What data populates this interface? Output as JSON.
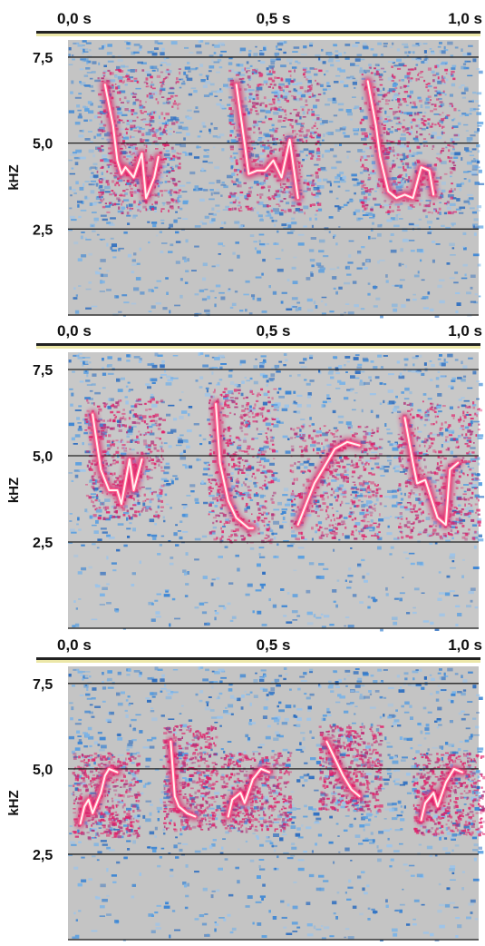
{
  "chart_data": [
    {
      "type": "heatmap",
      "title": "",
      "xlabel": "",
      "ylabel": "kHZ",
      "x_tick_labels": [
        "0,0 s",
        "0,5 s",
        "1,0 s"
      ],
      "x_ticks": [
        0.0,
        0.5,
        1.0
      ],
      "y_tick_labels": [
        "7,5",
        "5,0",
        "2,5"
      ],
      "y_ticks": [
        7.5,
        5.0,
        2.5
      ],
      "xlim": [
        0.0,
        1.0
      ],
      "ylim": [
        0.0,
        8.0
      ],
      "grid": "horizontal lines at 2,5 / 5,0 / 7,5 kHz",
      "notes_count": 3,
      "notes": [
        {
          "t": [
            0.09,
            0.11,
            0.12,
            0.13,
            0.14,
            0.16,
            0.18,
            0.19,
            0.21,
            0.22
          ],
          "f": [
            6.7,
            5.5,
            4.5,
            4.1,
            4.3,
            4.0,
            4.7,
            3.4,
            4.0,
            4.6
          ]
        },
        {
          "t": [
            0.41,
            0.43,
            0.44,
            0.46,
            0.48,
            0.5,
            0.52,
            0.54,
            0.56
          ],
          "f": [
            6.7,
            5.0,
            4.1,
            4.2,
            4.2,
            4.5,
            4.0,
            5.1,
            3.4
          ]
        },
        {
          "t": [
            0.73,
            0.75,
            0.76,
            0.78,
            0.8,
            0.82,
            0.84,
            0.86,
            0.88,
            0.89
          ],
          "f": [
            6.8,
            5.5,
            4.6,
            3.6,
            3.4,
            3.5,
            3.4,
            4.3,
            4.2,
            3.5
          ]
        }
      ],
      "colors": {
        "background": "#c4c4c4",
        "noise": "#4a8fd6",
        "energy": "#e0206a",
        "peak": "#fff0f0"
      }
    },
    {
      "type": "heatmap",
      "title": "",
      "xlabel": "",
      "ylabel": "kHZ",
      "x_tick_labels": [
        "0,0 s",
        "0,5 s",
        "1,0 s"
      ],
      "x_ticks": [
        0.0,
        0.5,
        1.0
      ],
      "y_tick_labels": [
        "7,5",
        "5,0",
        "2,5"
      ],
      "y_ticks": [
        7.5,
        5.0,
        2.5
      ],
      "xlim": [
        0.0,
        1.0
      ],
      "ylim": [
        0.0,
        8.0
      ],
      "grid": "horizontal lines at 2,5 / 5,0 / 7,5 kHz",
      "notes_count": 4,
      "notes": [
        {
          "t": [
            0.06,
            0.08,
            0.1,
            0.12,
            0.13,
            0.15,
            0.16,
            0.18
          ],
          "f": [
            6.2,
            4.6,
            4.0,
            4.0,
            3.6,
            4.9,
            4.0,
            4.9
          ]
        },
        {
          "t": [
            0.36,
            0.37,
            0.39,
            0.41,
            0.43,
            0.44,
            0.45
          ],
          "f": [
            6.5,
            4.8,
            3.7,
            3.2,
            3.0,
            2.9,
            2.9
          ]
        },
        {
          "t": [
            0.56,
            0.58,
            0.6,
            0.62,
            0.65,
            0.68,
            0.71
          ],
          "f": [
            3.0,
            3.6,
            4.2,
            4.6,
            5.2,
            5.4,
            5.3
          ]
        },
        {
          "t": [
            0.82,
            0.84,
            0.85,
            0.87,
            0.9,
            0.92,
            0.93,
            0.95
          ],
          "f": [
            6.1,
            4.8,
            4.2,
            4.3,
            3.2,
            3.0,
            4.6,
            4.8
          ]
        }
      ],
      "colors": {
        "background": "#c8c8c8",
        "noise": "#4a8fd6",
        "energy": "#e0206a",
        "peak": "#fff0f0"
      }
    },
    {
      "type": "heatmap",
      "title": "",
      "xlabel": "",
      "ylabel": "kHZ",
      "x_tick_labels": [
        "0,0 s",
        "0,5 s",
        "1,0 s"
      ],
      "x_ticks": [
        0.0,
        0.5,
        1.0
      ],
      "y_tick_labels": [
        "7,5",
        "5,0",
        "2,5"
      ],
      "y_ticks": [
        7.5,
        5.0,
        2.5
      ],
      "xlim": [
        0.0,
        1.0
      ],
      "ylim": [
        0.0,
        8.0
      ],
      "grid": "horizontal lines at 2,5 / 5,0 / 7,5 kHz",
      "notes_count": 5,
      "notes": [
        {
          "t": [
            0.03,
            0.04,
            0.05,
            0.06,
            0.08,
            0.09,
            0.1,
            0.12
          ],
          "f": [
            3.4,
            3.9,
            4.1,
            3.7,
            4.3,
            4.8,
            5.0,
            4.9
          ]
        },
        {
          "t": [
            0.25,
            0.26,
            0.27,
            0.29,
            0.31
          ],
          "f": [
            5.8,
            4.2,
            3.9,
            3.7,
            3.6
          ]
        },
        {
          "t": [
            0.39,
            0.4,
            0.42,
            0.43,
            0.45,
            0.47,
            0.49
          ],
          "f": [
            3.6,
            4.1,
            4.3,
            4.0,
            4.7,
            5.0,
            4.9
          ]
        },
        {
          "t": [
            0.63,
            0.65,
            0.67,
            0.69,
            0.71
          ],
          "f": [
            5.8,
            5.3,
            4.8,
            4.4,
            4.2
          ]
        },
        {
          "t": [
            0.86,
            0.87,
            0.89,
            0.9,
            0.92,
            0.94,
            0.96
          ],
          "f": [
            3.5,
            4.0,
            4.3,
            3.9,
            4.6,
            5.0,
            4.9
          ]
        }
      ],
      "colors": {
        "background": "#c4c4c4",
        "noise": "#4a8fd6",
        "energy": "#e0206a",
        "peak": "#fff0f0"
      }
    }
  ]
}
